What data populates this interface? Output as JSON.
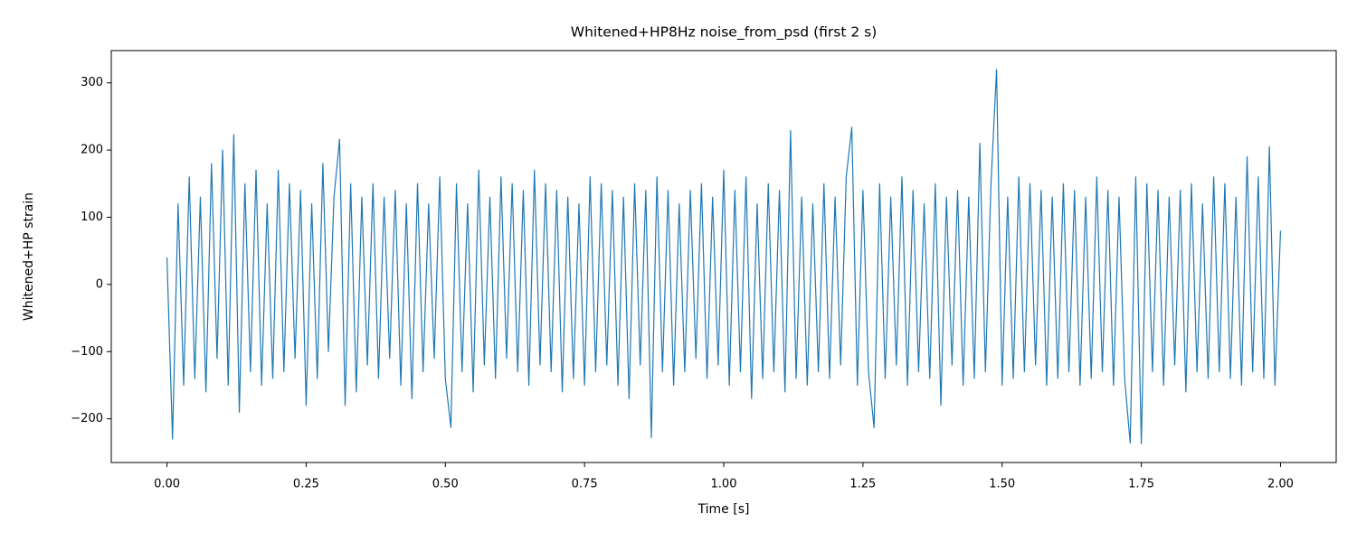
{
  "chart_data": {
    "type": "line",
    "title": "Whitened+HP8Hz noise_from_psd (first 2 s)",
    "x_label": "Time [s]",
    "y_label": "Whitened+HP strain",
    "xlim": [
      -0.1,
      2.1
    ],
    "ylim": [
      -265,
      348
    ],
    "xticks": [
      {
        "value": 0,
        "label": "0.00"
      },
      {
        "value": 0.25,
        "label": "0.25"
      },
      {
        "value": 0.5,
        "label": "0.50"
      },
      {
        "value": 0.75,
        "label": "0.75"
      },
      {
        "value": 1,
        "label": "1.00"
      },
      {
        "value": 1.25,
        "label": "1.25"
      },
      {
        "value": 1.5,
        "label": "1.50"
      },
      {
        "value": 1.75,
        "label": "1.75"
      },
      {
        "value": 2,
        "label": "2.00"
      }
    ],
    "yticks": [
      {
        "value": -200,
        "label": "−200"
      },
      {
        "value": -100,
        "label": "−100"
      },
      0,
      100,
      200,
      300
    ],
    "x": [
      0,
      0.01,
      0.02,
      0.03,
      0.04,
      0.05,
      0.06,
      0.07,
      0.08,
      0.09,
      0.1,
      0.11,
      0.12,
      0.13,
      0.14,
      0.15,
      0.16,
      0.17,
      0.18,
      0.19,
      0.2,
      0.21,
      0.22,
      0.23,
      0.24,
      0.25,
      0.26,
      0.27,
      0.28,
      0.29,
      0.3,
      0.31,
      0.32,
      0.33,
      0.34,
      0.35,
      0.36,
      0.37,
      0.38,
      0.39,
      0.4,
      0.41,
      0.42,
      0.43,
      0.44,
      0.45,
      0.46,
      0.47,
      0.48,
      0.49,
      0.5,
      0.51,
      0.52,
      0.53,
      0.54,
      0.55,
      0.56,
      0.57,
      0.58,
      0.59,
      0.6,
      0.61,
      0.62,
      0.63,
      0.64,
      0.65,
      0.66,
      0.67,
      0.68,
      0.69,
      0.7,
      0.71,
      0.72,
      0.73,
      0.74,
      0.75,
      0.76,
      0.77,
      0.78,
      0.79,
      0.8,
      0.81,
      0.82,
      0.83,
      0.84,
      0.85,
      0.86,
      0.87,
      0.88,
      0.89,
      0.9,
      0.91,
      0.92,
      0.93,
      0.94,
      0.95,
      0.96,
      0.97,
      0.98,
      0.99,
      1,
      1.01,
      1.02,
      1.03,
      1.04,
      1.05,
      1.06,
      1.07,
      1.08,
      1.09,
      1.1,
      1.11,
      1.12,
      1.13,
      1.14,
      1.15,
      1.16,
      1.17,
      1.18,
      1.19,
      1.2,
      1.21,
      1.22,
      1.23,
      1.24,
      1.25,
      1.26,
      1.27,
      1.28,
      1.29,
      1.3,
      1.31,
      1.32,
      1.33,
      1.34,
      1.35,
      1.36,
      1.37,
      1.38,
      1.39,
      1.4,
      1.41,
      1.42,
      1.43,
      1.44,
      1.45,
      1.46,
      1.47,
      1.48,
      1.49,
      1.5,
      1.51,
      1.52,
      1.53,
      1.54,
      1.55,
      1.56,
      1.57,
      1.58,
      1.59,
      1.6,
      1.61,
      1.62,
      1.63,
      1.64,
      1.65,
      1.66,
      1.67,
      1.68,
      1.69,
      1.7,
      1.71,
      1.72,
      1.73,
      1.74,
      1.75,
      1.76,
      1.77,
      1.78,
      1.79,
      1.8,
      1.81,
      1.82,
      1.83,
      1.84,
      1.85,
      1.86,
      1.87,
      1.88,
      1.89,
      1.9,
      1.91,
      1.92,
      1.93,
      1.94,
      1.95,
      1.96,
      1.97,
      1.98,
      1.99,
      2
    ],
    "series": [
      {
        "color": "#1f77b4",
        "values": [
          40,
          -230,
          120,
          -150,
          160,
          -140,
          130,
          -160,
          180,
          -110,
          200,
          -150,
          223,
          -190,
          150,
          -130,
          170,
          -150,
          120,
          -140,
          170,
          -130,
          150,
          -110,
          140,
          -180,
          120,
          -140,
          180,
          -100,
          130,
          216,
          -180,
          150,
          -160,
          130,
          -120,
          150,
          -140,
          130,
          -110,
          140,
          -150,
          120,
          -170,
          150,
          -130,
          120,
          -110,
          160,
          -140,
          -213,
          150,
          -130,
          120,
          -160,
          170,
          -120,
          130,
          -140,
          160,
          -110,
          150,
          -130,
          140,
          -150,
          170,
          -120,
          150,
          -130,
          140,
          -160,
          130,
          -140,
          120,
          -150,
          160,
          -130,
          150,
          -120,
          140,
          -150,
          130,
          -170,
          150,
          -120,
          140,
          -228,
          160,
          -130,
          140,
          -150,
          120,
          -130,
          140,
          -110,
          150,
          -140,
          130,
          -120,
          170,
          -150,
          140,
          -130,
          160,
          -170,
          120,
          -140,
          150,
          -130,
          140,
          -160,
          229,
          -140,
          130,
          -150,
          120,
          -130,
          150,
          -140,
          130,
          -120,
          160,
          234,
          -150,
          140,
          -130,
          -213,
          150,
          -140,
          130,
          -120,
          160,
          -150,
          140,
          -130,
          120,
          -140,
          150,
          -180,
          130,
          -120,
          140,
          -150,
          130,
          -140,
          210,
          -130,
          150,
          320,
          -150,
          130,
          -140,
          160,
          -130,
          150,
          -120,
          140,
          -150,
          130,
          -140,
          150,
          -130,
          140,
          -150,
          130,
          -140,
          160,
          -130,
          140,
          -150,
          130,
          -140,
          -236,
          160,
          -237,
          150,
          -130,
          140,
          -150,
          130,
          -120,
          140,
          -160,
          150,
          -130,
          120,
          -140,
          160,
          -130,
          150,
          -140,
          130,
          -150,
          190,
          -130,
          160,
          -140,
          205,
          -150,
          80
        ]
      }
    ]
  }
}
